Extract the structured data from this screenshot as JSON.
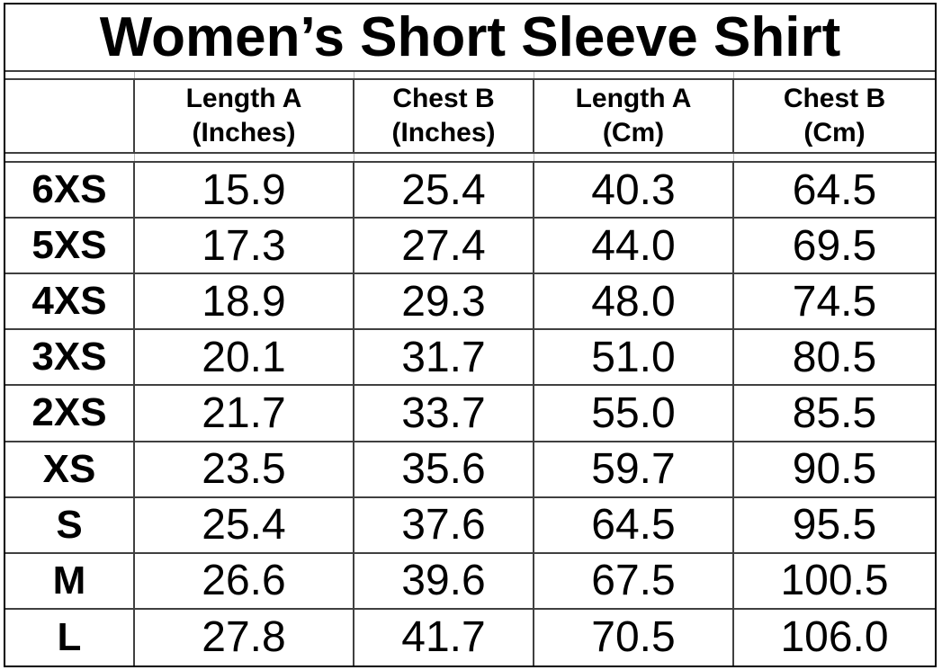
{
  "title": "Women’s Short Sleeve Shirt",
  "colors": {
    "text": "#000000",
    "background": "#ffffff",
    "grid_line": "#404040",
    "outer_border": "#000000"
  },
  "table": {
    "columns": [
      {
        "label": ""
      },
      {
        "label": "Length A\n(Inches)"
      },
      {
        "label": "Chest B\n(Inches)"
      },
      {
        "label": "Length A\n(Cm)"
      },
      {
        "label": "Chest B\n(Cm)"
      }
    ],
    "rows": [
      {
        "size": "6XS",
        "length_in": "15.9",
        "chest_in": "25.4",
        "length_cm": "40.3",
        "chest_cm": "64.5"
      },
      {
        "size": "5XS",
        "length_in": "17.3",
        "chest_in": "27.4",
        "length_cm": "44.0",
        "chest_cm": "69.5"
      },
      {
        "size": "4XS",
        "length_in": "18.9",
        "chest_in": "29.3",
        "length_cm": "48.0",
        "chest_cm": "74.5"
      },
      {
        "size": "3XS",
        "length_in": "20.1",
        "chest_in": "31.7",
        "length_cm": "51.0",
        "chest_cm": "80.5"
      },
      {
        "size": "2XS",
        "length_in": "21.7",
        "chest_in": "33.7",
        "length_cm": "55.0",
        "chest_cm": "85.5"
      },
      {
        "size": "XS",
        "length_in": "23.5",
        "chest_in": "35.6",
        "length_cm": "59.7",
        "chest_cm": "90.5"
      },
      {
        "size": "S",
        "length_in": "25.4",
        "chest_in": "37.6",
        "length_cm": "64.5",
        "chest_cm": "95.5"
      },
      {
        "size": "M",
        "length_in": "26.6",
        "chest_in": "39.6",
        "length_cm": "67.5",
        "chest_cm": "100.5"
      },
      {
        "size": "L",
        "length_in": "27.8",
        "chest_in": "41.7",
        "length_cm": "70.5",
        "chest_cm": "106.0"
      }
    ]
  },
  "chart_data": {
    "type": "table",
    "title": "Women’s Short Sleeve Shirt",
    "columns": [
      "",
      "Length A (Inches)",
      "Chest B (Inches)",
      "Length A (Cm)",
      "Chest B (Cm)"
    ],
    "rows": [
      [
        "6XS",
        15.9,
        25.4,
        40.3,
        64.5
      ],
      [
        "5XS",
        17.3,
        27.4,
        44.0,
        69.5
      ],
      [
        "4XS",
        18.9,
        29.3,
        48.0,
        74.5
      ],
      [
        "3XS",
        20.1,
        31.7,
        51.0,
        80.5
      ],
      [
        "2XS",
        21.7,
        33.7,
        55.0,
        85.5
      ],
      [
        "XS",
        23.5,
        35.6,
        59.7,
        90.5
      ],
      [
        "S",
        25.4,
        37.6,
        64.5,
        95.5
      ],
      [
        "M",
        26.6,
        39.6,
        67.5,
        100.5
      ],
      [
        "L",
        27.8,
        41.7,
        70.5,
        106.0
      ]
    ],
    "layout": {
      "title_row_merged": true,
      "grid": true,
      "first_column_header_empty": true
    }
  }
}
